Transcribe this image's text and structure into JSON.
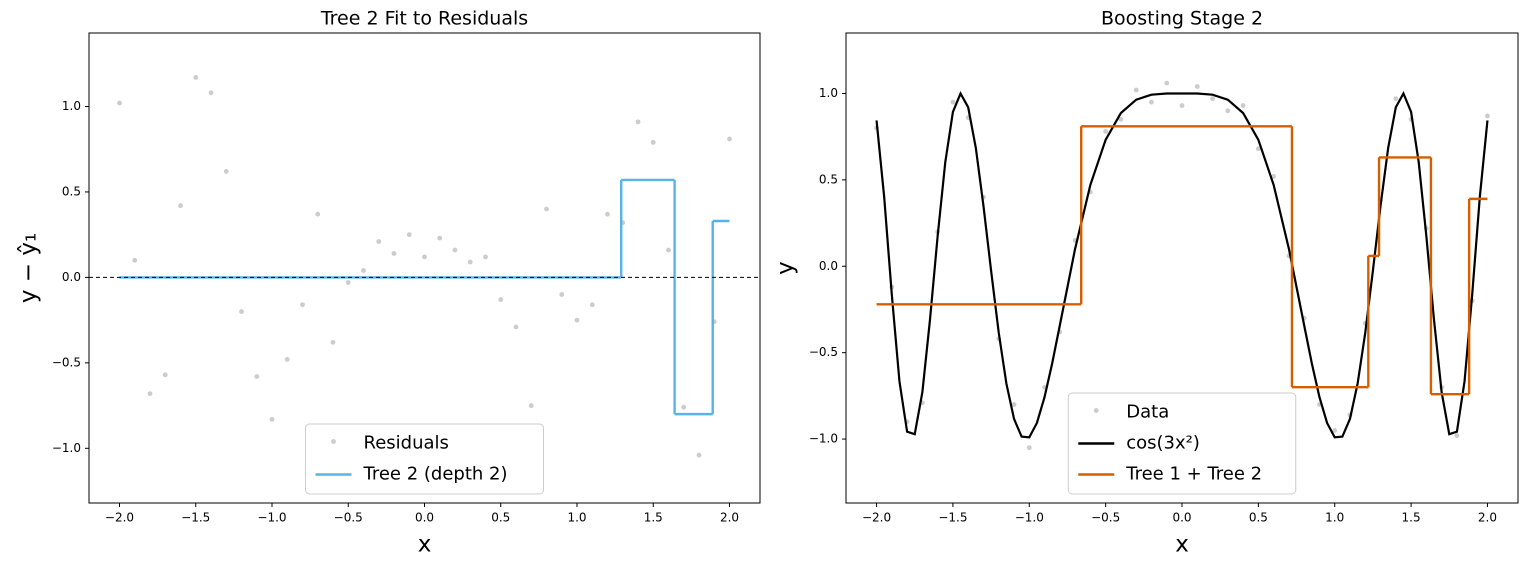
{
  "chart_data": [
    {
      "type": "line",
      "title": "Tree 2 Fit to Residuals",
      "xlabel": "x",
      "ylabel": "y − ŷ₁",
      "xlim": [
        -2.2,
        2.2
      ],
      "ylim": [
        -1.32,
        1.43
      ],
      "xticks": [
        {
          "value": -2.0,
          "label": "−2.0"
        },
        {
          "value": -1.5,
          "label": "−1.5"
        },
        {
          "value": -1.0,
          "label": "−1.0"
        },
        {
          "value": -0.5,
          "label": "−0.5"
        },
        {
          "value": 0.0,
          "label": "0.0"
        },
        0.5,
        {
          "value": 1.0,
          "label": "1.0"
        },
        1.5,
        {
          "value": 2.0,
          "label": "2.0"
        }
      ],
      "yticks": [
        {
          "value": -1.0,
          "label": "−1.0"
        },
        {
          "value": -0.5,
          "label": "−0.5"
        },
        {
          "value": 0.0,
          "label": "0.0"
        },
        0.5,
        {
          "value": 1.0,
          "label": "1.0"
        }
      ],
      "hline": 0,
      "legend": "lower center",
      "series": [
        {
          "name": "Residuals",
          "type": "scatter",
          "color": "#999999",
          "x": [
            -2.0,
            -1.9,
            -1.8,
            -1.7,
            -1.6,
            -1.5,
            -1.4,
            -1.3,
            -1.2,
            -1.1,
            -1.0,
            -0.9,
            -0.8,
            -0.7,
            -0.6,
            -0.5,
            -0.4,
            -0.3,
            -0.2,
            -0.1,
            0.0,
            0.1,
            0.2,
            0.3,
            0.4,
            0.5,
            0.6,
            0.7,
            0.8,
            0.9,
            1.0,
            1.1,
            1.2,
            1.3,
            1.4,
            1.5,
            1.6,
            1.7,
            1.8,
            1.9,
            2.0
          ],
          "values": [
            1.02,
            0.1,
            -0.68,
            -0.57,
            0.42,
            1.17,
            1.08,
            0.62,
            -0.2,
            -0.58,
            -0.83,
            -0.48,
            -0.16,
            0.37,
            -0.38,
            -0.03,
            0.04,
            0.21,
            0.14,
            0.25,
            0.12,
            0.23,
            0.16,
            0.09,
            0.12,
            -0.13,
            -0.29,
            -0.75,
            0.4,
            -0.1,
            -0.25,
            -0.16,
            0.37,
            0.32,
            0.91,
            0.79,
            0.16,
            -0.76,
            -1.04,
            -0.26,
            0.81
          ]
        },
        {
          "name": "Tree 2 (depth 2)",
          "type": "step",
          "color": "#56b4e9",
          "edges": [
            -2.0,
            1.29,
            1.64,
            1.89,
            2.0
          ],
          "values": [
            0,
            0.57,
            -0.8,
            0.33
          ]
        }
      ]
    },
    {
      "type": "line",
      "title": "Boosting Stage 2",
      "xlabel": "x",
      "ylabel": "y",
      "xlim": [
        -2.2,
        2.2
      ],
      "ylim": [
        -1.37,
        1.35
      ],
      "xticks": [
        {
          "value": -2.0,
          "label": "−2.0"
        },
        {
          "value": -1.5,
          "label": "−1.5"
        },
        {
          "value": -1.0,
          "label": "−1.0"
        },
        {
          "value": -0.5,
          "label": "−0.5"
        },
        {
          "value": 0.0,
          "label": "0.0"
        },
        0.5,
        {
          "value": 1.0,
          "label": "1.0"
        },
        1.5,
        {
          "value": 2.0,
          "label": "2.0"
        }
      ],
      "yticks": [
        {
          "value": -1.0,
          "label": "−1.0"
        },
        {
          "value": -0.5,
          "label": "−0.5"
        },
        {
          "value": 0.0,
          "label": "0.0"
        },
        0.5,
        {
          "value": 1.0,
          "label": "1.0"
        }
      ],
      "legend": "lower center",
      "series": [
        {
          "name": "Data",
          "type": "scatter",
          "color": "#999999",
          "x": [
            -2.0,
            -1.9,
            -1.8,
            -1.7,
            -1.6,
            -1.5,
            -1.4,
            -1.3,
            -1.2,
            -1.1,
            -1.0,
            -0.9,
            -0.8,
            -0.7,
            -0.6,
            -0.5,
            -0.4,
            -0.3,
            -0.2,
            -0.1,
            0.0,
            0.1,
            0.2,
            0.3,
            0.4,
            0.5,
            0.6,
            0.7,
            0.8,
            0.9,
            1.0,
            1.1,
            1.2,
            1.3,
            1.4,
            1.5,
            1.6,
            1.7,
            1.8,
            1.9,
            2.0
          ],
          "values": [
            0.8,
            -0.12,
            -0.9,
            -0.79,
            0.2,
            0.95,
            0.86,
            0.4,
            -0.42,
            -0.8,
            -1.05,
            -0.7,
            -0.38,
            0.15,
            0.43,
            0.78,
            0.85,
            1.02,
            0.95,
            1.06,
            0.93,
            1.04,
            0.97,
            0.9,
            0.93,
            0.68,
            0.52,
            0.06,
            -0.3,
            -0.8,
            -0.95,
            -0.86,
            -0.33,
            0.38,
            0.97,
            0.85,
            0.22,
            -0.7,
            -0.98,
            -0.2,
            0.87
          ]
        },
        {
          "name": "cos(3x²)",
          "type": "line",
          "color": "#000000",
          "x": [
            -2.0,
            -1.95,
            -1.9,
            -1.85,
            -1.8,
            -1.75,
            -1.7,
            -1.65,
            -1.6,
            -1.55,
            -1.5,
            -1.45,
            -1.4,
            -1.35,
            -1.3,
            -1.25,
            -1.2,
            -1.15,
            -1.1,
            -1.05,
            -1.0,
            -0.95,
            -0.9,
            -0.85,
            -0.8,
            -0.7,
            -0.6,
            -0.5,
            -0.4,
            -0.3,
            -0.2,
            -0.1,
            0.0,
            0.1,
            0.2,
            0.3,
            0.4,
            0.5,
            0.6,
            0.7,
            0.8,
            0.85,
            0.9,
            0.95,
            1.0,
            1.05,
            1.1,
            1.15,
            1.2,
            1.25,
            1.3,
            1.35,
            1.4,
            1.45,
            1.5,
            1.55,
            1.6,
            1.65,
            1.7,
            1.75,
            1.8,
            1.85,
            1.9,
            1.95,
            2.0
          ],
          "values": [
            0.844,
            0.401,
            -0.165,
            -0.666,
            -0.957,
            -0.972,
            -0.729,
            -0.309,
            0.174,
            0.602,
            0.893,
            1.0,
            0.92,
            0.685,
            0.35,
            -0.025,
            -0.384,
            -0.678,
            -0.883,
            -0.986,
            -0.99,
            -0.907,
            -0.757,
            -0.562,
            -0.342,
            0.101,
            0.471,
            0.732,
            0.887,
            0.964,
            0.993,
            1.0,
            1.0,
            1.0,
            0.993,
            0.964,
            0.887,
            0.732,
            0.471,
            0.101,
            -0.342,
            -0.562,
            -0.757,
            -0.907,
            -0.99,
            -0.986,
            -0.883,
            -0.678,
            -0.384,
            -0.025,
            0.35,
            0.685,
            0.92,
            1.0,
            0.893,
            0.602,
            0.174,
            -0.309,
            -0.729,
            -0.972,
            -0.957,
            -0.666,
            -0.165,
            0.401,
            0.844
          ]
        },
        {
          "name": "Tree 1 + Tree 2",
          "type": "step",
          "color": "#d55e00",
          "edges": [
            -2.0,
            -0.66,
            0.72,
            1.22,
            1.29,
            1.63,
            1.88,
            2.0
          ],
          "values": [
            -0.22,
            0.81,
            -0.7,
            0.06,
            0.63,
            -0.74,
            0.39
          ]
        }
      ]
    }
  ]
}
